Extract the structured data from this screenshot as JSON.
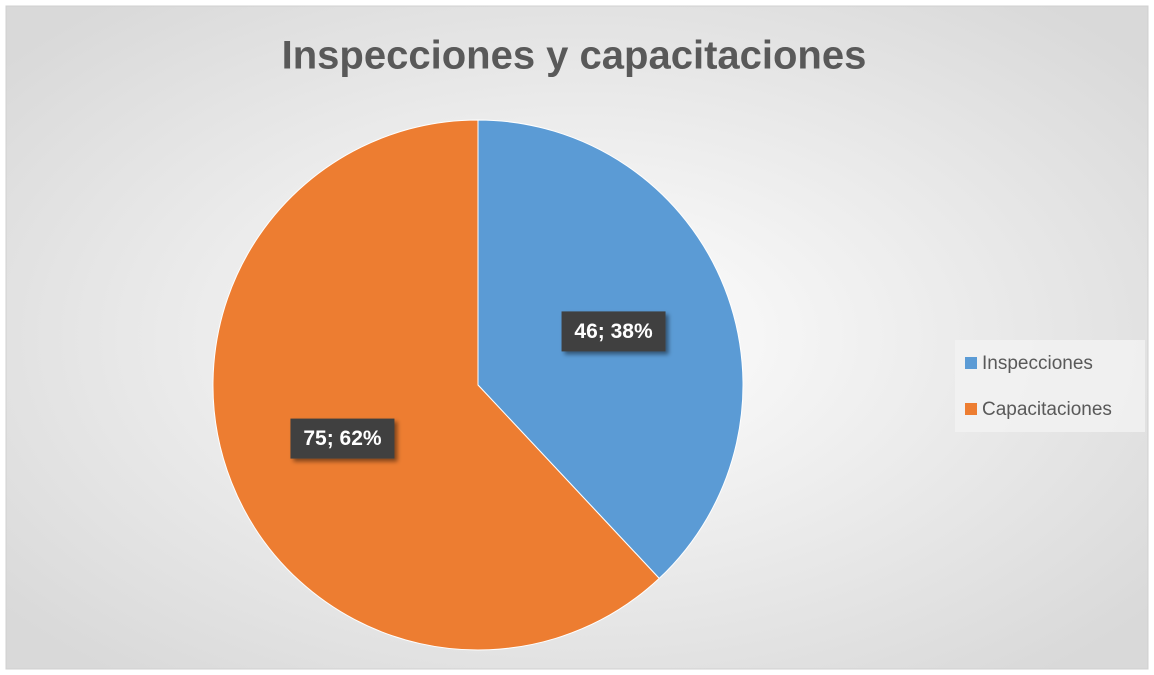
{
  "chart_data": {
    "type": "pie",
    "title": "Inspecciones y capacitaciones",
    "categories": [
      "Inspecciones",
      "Capacitaciones"
    ],
    "values": [
      46,
      75
    ],
    "value_labels": [
      "46; 38%",
      "75; 62%"
    ],
    "colors": [
      "#5b9bd5",
      "#ed7d31"
    ],
    "legend": "right"
  }
}
